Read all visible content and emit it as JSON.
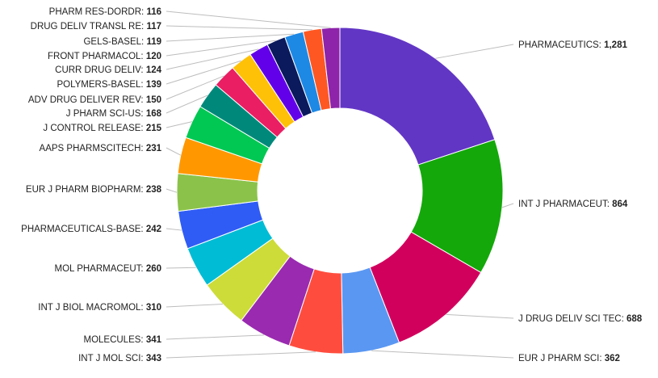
{
  "chart_data": {
    "type": "pie",
    "variant": "donut",
    "title": "",
    "slices": [
      {
        "label": "PHARMACEUTICS",
        "value": 1281,
        "color": "#6236c5"
      },
      {
        "label": "INT J PHARMACEUT",
        "value": 864,
        "color": "#14a80a"
      },
      {
        "label": "J DRUG DELIV SCI TEC",
        "value": 688,
        "color": "#d1005d"
      },
      {
        "label": "EUR J PHARM SCI",
        "value": 362,
        "color": "#5a97f2"
      },
      {
        "label": "INT J MOL SCI",
        "value": 343,
        "color": "#fe4d3e"
      },
      {
        "label": "MOLECULES",
        "value": 341,
        "color": "#9a2ab0"
      },
      {
        "label": "INT J BIOL MACROMOL",
        "value": 310,
        "color": "#cddc39"
      },
      {
        "label": "MOL PHARMACEUT",
        "value": 260,
        "color": "#00bcd4"
      },
      {
        "label": "PHARMACEUTICALS-BASE",
        "value": 242,
        "color": "#2f5cf5"
      },
      {
        "label": "EUR J PHARM BIOPHARM",
        "value": 238,
        "color": "#8bc34a"
      },
      {
        "label": "AAPS PHARMSCITECH",
        "value": 231,
        "color": "#ff9800"
      },
      {
        "label": "J CONTROL RELEASE",
        "value": 215,
        "color": "#00c853"
      },
      {
        "label": "J PHARM SCI-US",
        "value": 168,
        "color": "#00897b"
      },
      {
        "label": "ADV DRUG DELIVER REV",
        "value": 150,
        "color": "#e91e63"
      },
      {
        "label": "POLYMERS-BASEL",
        "value": 139,
        "color": "#ffc107"
      },
      {
        "label": "CURR DRUG DELIV",
        "value": 124,
        "color": "#6200ea"
      },
      {
        "label": "FRONT PHARMACOL",
        "value": 120,
        "color": "#0a1a5c"
      },
      {
        "label": "GELS-BASEL",
        "value": 119,
        "color": "#1e88e5"
      },
      {
        "label": "DRUG DELIV TRANSL RE",
        "value": 117,
        "color": "#ff5722"
      },
      {
        "label": "PHARM RES-DORDR",
        "value": 116,
        "color": "#8e24aa"
      }
    ]
  }
}
